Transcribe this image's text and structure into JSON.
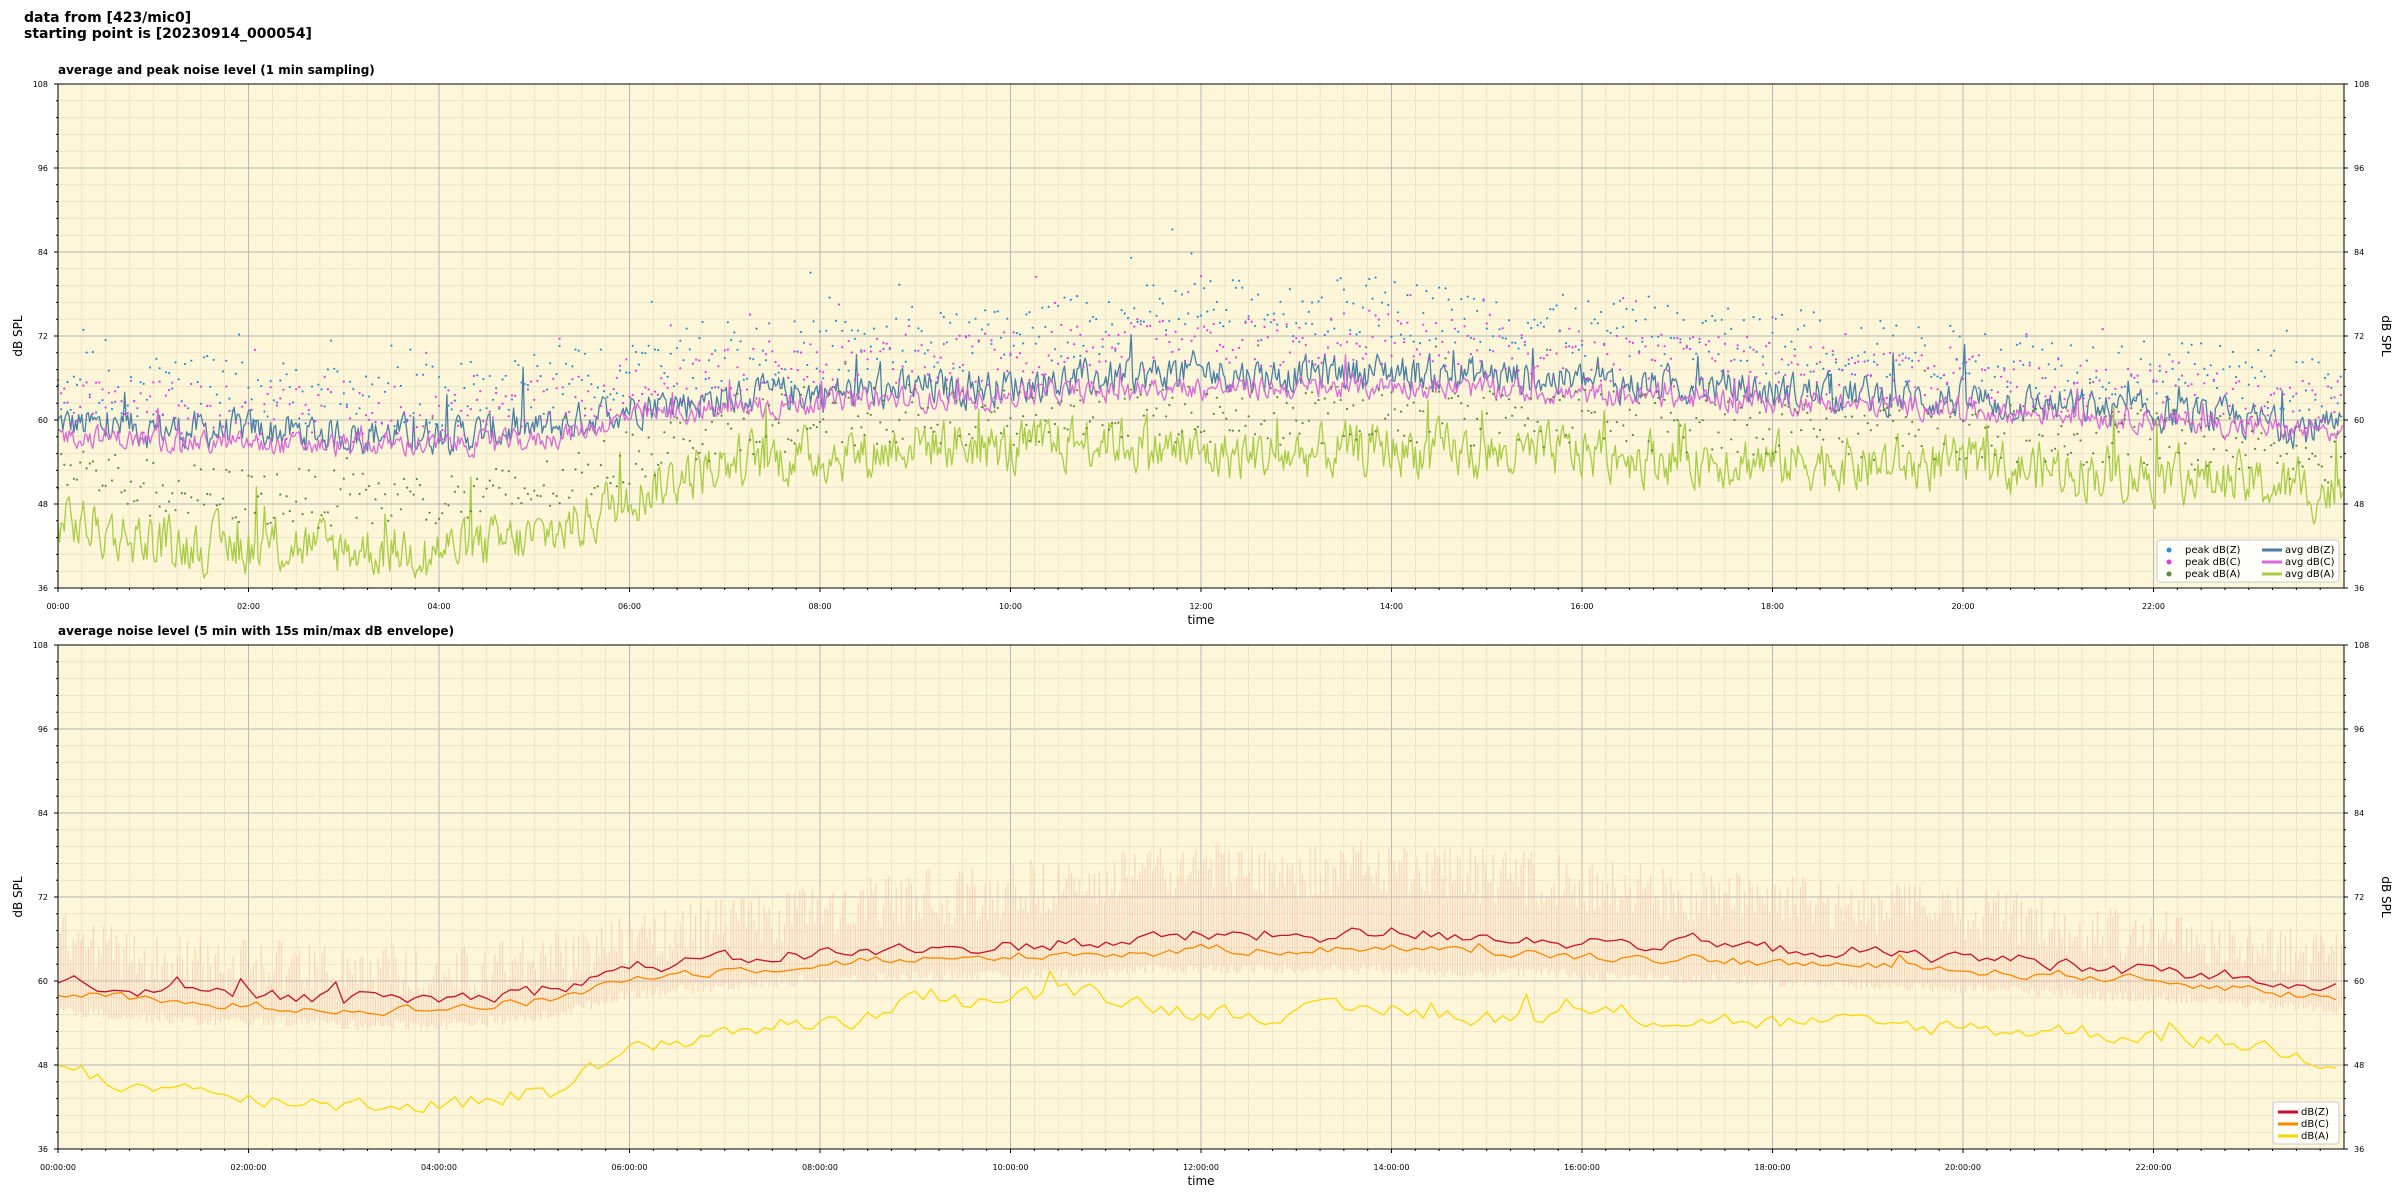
{
  "header": {
    "line1": "data from [423/mic0]",
    "line2": "starting point is [20230914_000054]"
  },
  "chart_data": [
    {
      "type": "line",
      "title": "average and peak noise level (1 min sampling)",
      "xlabel": "time",
      "ylabel": "dB SPL",
      "xlim": [
        "00:00",
        "24:00"
      ],
      "ylim": [
        36,
        108
      ],
      "yticks": [
        36,
        48,
        60,
        72,
        84,
        96,
        108
      ],
      "xtick_labels": [
        "00:00",
        "02:00",
        "04:00",
        "06:00",
        "08:00",
        "10:00",
        "12:00",
        "14:00",
        "16:00",
        "18:00",
        "20:00",
        "22:00"
      ],
      "grid": true,
      "legend_position": "lower-right",
      "background": "#fdf6d9",
      "keypoint_hours": [
        0,
        0.5,
        1,
        1.5,
        2,
        2.5,
        3,
        3.5,
        4,
        4.5,
        5,
        5.5,
        6,
        6.5,
        7,
        7.5,
        8,
        8.5,
        9,
        9.5,
        10,
        10.5,
        11,
        11.5,
        12,
        12.5,
        13,
        13.5,
        14,
        14.5,
        15,
        15.5,
        16,
        16.5,
        17,
        17.5,
        18,
        18.5,
        19,
        19.5,
        20,
        20.5,
        21,
        21.5,
        22,
        22.5,
        23,
        23.5,
        24
      ],
      "series": [
        {
          "name": "avg dB(Z)",
          "kind": "line",
          "color": "#4a7fa5",
          "values": [
            59.5,
            59,
            58.7,
            58.5,
            58.5,
            58.3,
            58,
            58,
            58,
            58.2,
            58.5,
            60,
            62,
            62.5,
            63,
            63.5,
            64,
            64,
            64.5,
            64.5,
            65,
            65.5,
            66,
            66.5,
            67,
            66.5,
            66.5,
            67,
            67,
            66.5,
            66.5,
            66,
            65.5,
            65,
            65,
            64.5,
            64,
            64,
            63.5,
            63,
            63,
            62.5,
            62,
            61.5,
            61,
            60.5,
            60,
            59,
            58.5
          ],
          "noise": 2.2
        },
        {
          "name": "avg dB(C)",
          "kind": "line",
          "color": "#d86ad8",
          "values": [
            58,
            57.5,
            57,
            56.8,
            56.5,
            56.5,
            56.3,
            56.5,
            56.5,
            56.8,
            57,
            58.5,
            60.5,
            61,
            61.5,
            62,
            62.5,
            63,
            63,
            63,
            63.5,
            64,
            64,
            64.5,
            64.5,
            64.5,
            64.5,
            64.5,
            65,
            64.5,
            64.5,
            64,
            63.5,
            63.5,
            63,
            63,
            62.5,
            62.5,
            62,
            62,
            61.5,
            61,
            61,
            60.5,
            60,
            59.5,
            59,
            58.5,
            58
          ],
          "noise": 1.4
        },
        {
          "name": "avg dB(A)",
          "kind": "line",
          "color": "#a8cc45",
          "values": [
            46,
            44,
            42.5,
            42,
            42,
            42,
            41.5,
            41.5,
            41.5,
            42,
            43,
            45.5,
            49.5,
            51.5,
            54,
            54.5,
            55,
            55,
            57,
            56.5,
            55.5,
            56.5,
            57.5,
            56,
            55,
            55,
            55,
            55.5,
            56,
            55.5,
            55,
            55,
            55.5,
            55,
            54.5,
            54.5,
            54,
            54,
            53.5,
            53.5,
            53.5,
            53,
            53,
            52.5,
            52.5,
            51.5,
            51,
            50,
            49.5
          ],
          "noise": 3.2
        },
        {
          "name": "peak dB(Z)",
          "kind": "scatter",
          "color": "#2e8fd8",
          "values": [
            66,
            65,
            65,
            64.5,
            64,
            64,
            63.5,
            63.5,
            63.5,
            64,
            65,
            66,
            68,
            68.5,
            69,
            69.5,
            70,
            70.5,
            71,
            71,
            72,
            73,
            74,
            75,
            76,
            75.5,
            75.5,
            76,
            76,
            75,
            74.5,
            74,
            73,
            72.5,
            72,
            71.5,
            71,
            70.5,
            70,
            69.5,
            69,
            68.5,
            68,
            67.5,
            67,
            66.5,
            66,
            65.5,
            65
          ],
          "noise": 4.5
        },
        {
          "name": "peak dB(C)",
          "kind": "scatter",
          "color": "#e838e8",
          "values": [
            63,
            62,
            62,
            61.5,
            61,
            61,
            60.5,
            60.5,
            60.5,
            61,
            62,
            63,
            65.5,
            66,
            66.5,
            67,
            67.5,
            68,
            68.5,
            68.5,
            69,
            70,
            70.5,
            71,
            71.5,
            71,
            71,
            71.5,
            71.5,
            71,
            70.5,
            70,
            69.5,
            69,
            68.5,
            68,
            67.5,
            67,
            67,
            66.5,
            66,
            65.5,
            65,
            64.5,
            64,
            63.5,
            63,
            62.5,
            62
          ],
          "noise": 3.8
        },
        {
          "name": "peak dB(A)",
          "kind": "scatter",
          "color": "#5c8a3a",
          "values": [
            54,
            52,
            50,
            49.5,
            49,
            49,
            48.5,
            48.5,
            48.5,
            49,
            50,
            52,
            55,
            57,
            59,
            59.5,
            60,
            60,
            61,
            60.5,
            60,
            61,
            61.5,
            61,
            60.5,
            60.5,
            60.5,
            61,
            61,
            60.5,
            60,
            60,
            60.5,
            60,
            59.5,
            59.5,
            59,
            59,
            58.5,
            58.5,
            58.5,
            58,
            58,
            57.5,
            57.5,
            57,
            56.5,
            55.5,
            55
          ],
          "noise": 4.2
        }
      ]
    },
    {
      "type": "line",
      "title": "average noise level (5 min with 15s min/max dB envelope)",
      "xlabel": "time",
      "ylabel": "dB SPL",
      "xlim": [
        "00:00:00",
        "24:00:00"
      ],
      "ylim": [
        36,
        108
      ],
      "yticks": [
        36,
        48,
        60,
        72,
        84,
        96,
        108
      ],
      "xtick_labels": [
        "00:00:00",
        "02:00:00",
        "04:00:00",
        "06:00:00",
        "08:00:00",
        "10:00:00",
        "12:00:00",
        "14:00:00",
        "16:00:00",
        "18:00:00",
        "20:00:00",
        "22:00:00"
      ],
      "grid": true,
      "legend_position": "lower-right",
      "background": "#fdf6d9",
      "envelope_color": "#f4b8a0",
      "keypoint_hours": [
        0,
        0.5,
        1,
        1.5,
        2,
        2.5,
        3,
        3.5,
        4,
        4.5,
        5,
        5.5,
        6,
        6.5,
        7,
        7.5,
        8,
        8.5,
        9,
        9.5,
        10,
        10.5,
        11,
        11.5,
        12,
        12.5,
        13,
        13.5,
        14,
        14.5,
        15,
        15.5,
        16,
        16.5,
        17,
        17.5,
        18,
        18.5,
        19,
        19.5,
        20,
        20.5,
        21,
        21.5,
        22,
        22.5,
        23,
        23.5,
        24
      ],
      "envelope_max": [
        70,
        68,
        67,
        66.5,
        66,
        66,
        65.5,
        65.5,
        65.5,
        66,
        67,
        68,
        70,
        71,
        72,
        73,
        74,
        75,
        76,
        76,
        77,
        78,
        79,
        80,
        80,
        79.5,
        79.5,
        80,
        80.5,
        79.5,
        79,
        78.5,
        78,
        77,
        76.5,
        76,
        75.5,
        75,
        74.5,
        74,
        73.5,
        73,
        72,
        71,
        70.5,
        70,
        69,
        68,
        67
      ],
      "envelope_min": [
        55,
        54.5,
        54,
        53.5,
        53.5,
        53.5,
        53,
        53,
        53,
        53.5,
        54,
        55.5,
        57.5,
        58,
        58.5,
        59,
        59.5,
        59.5,
        60,
        60,
        60,
        60.5,
        60.5,
        61,
        61,
        61,
        61,
        61,
        61,
        60.5,
        60.5,
        60.5,
        60,
        60,
        59.5,
        59.5,
        59,
        59,
        58.5,
        58.5,
        58,
        58,
        57.5,
        57,
        57,
        56.5,
        56,
        55.5,
        55
      ],
      "series": [
        {
          "name": "dB(Z)",
          "kind": "line",
          "color": "#c8102e",
          "values": [
            60,
            59.5,
            58.5,
            58,
            58,
            57.8,
            57.5,
            57.5,
            57.5,
            57.8,
            58.5,
            60,
            62,
            62.5,
            63,
            63.5,
            64,
            64,
            64.5,
            64.5,
            65,
            65.5,
            65.5,
            66,
            66.5,
            66.5,
            66.5,
            66.5,
            67,
            66.5,
            66.5,
            66,
            65.5,
            65.5,
            65,
            65,
            64.5,
            64.5,
            64,
            63.5,
            63.5,
            63,
            62.5,
            62,
            61.5,
            61,
            60.5,
            59,
            58.5
          ],
          "noise": 0.9
        },
        {
          "name": "dB(C)",
          "kind": "line",
          "color": "#ff8800",
          "values": [
            58.5,
            58,
            57,
            56.5,
            56.5,
            56.3,
            56,
            56,
            56,
            56.5,
            57,
            58.5,
            60.5,
            61,
            61.5,
            62,
            62.5,
            63,
            63,
            63,
            63.5,
            64,
            64,
            64,
            64.5,
            64.5,
            64.5,
            64.5,
            65,
            64.5,
            64,
            64,
            63.5,
            63.5,
            63,
            63,
            62.5,
            62.5,
            62,
            62,
            61.5,
            61,
            61,
            60.5,
            60,
            59.5,
            59,
            58,
            57.5
          ],
          "noise": 0.6
        },
        {
          "name": "dB(A)",
          "kind": "line",
          "color": "#ffd700",
          "values": [
            48,
            46,
            44.5,
            43.5,
            43,
            43,
            42.5,
            42.5,
            42.5,
            43,
            44,
            46.5,
            49.5,
            51.5,
            53,
            53.5,
            54,
            54.5,
            59,
            57,
            57.5,
            58,
            58,
            56.5,
            55.5,
            55.5,
            55.5,
            55.5,
            56,
            55.5,
            55,
            55,
            55.5,
            55,
            54.5,
            54.5,
            54,
            54,
            53.5,
            53.5,
            53.5,
            53,
            53,
            52.5,
            52.5,
            51.5,
            51,
            49.5,
            48.5
          ],
          "noise": 1.2
        }
      ]
    }
  ]
}
